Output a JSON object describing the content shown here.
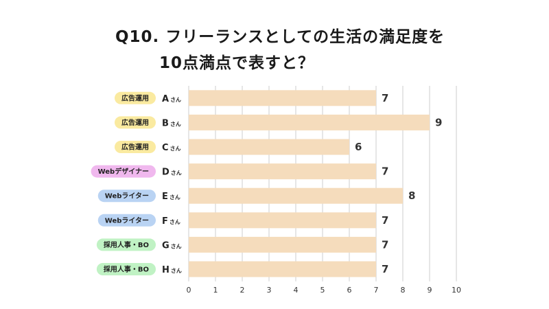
{
  "title": {
    "line1": "Q10. フリーランスとしての生活の満足度を",
    "line2": "10点満点で表すと？"
  },
  "colors": {
    "bar": "#f5dcbc",
    "grid": "#cccccc",
    "badge_ad": "#faeaa0",
    "badge_web_designer": "#f0b8ee",
    "badge_web_writer": "#b9d3f3",
    "badge_hr": "#c0f2c4"
  },
  "chart_data": {
    "type": "bar",
    "orientation": "horizontal",
    "categories": [
      "Aさん",
      "Bさん",
      "Cさん",
      "Dさん",
      "Eさん",
      "Fさん",
      "Gさん",
      "Hさん"
    ],
    "category_initials": [
      "A",
      "B",
      "C",
      "D",
      "E",
      "F",
      "G",
      "H"
    ],
    "category_suffix": "さん",
    "roles": [
      "広告運用",
      "広告運用",
      "広告運用",
      "Webデザイナー",
      "Webライター",
      "Webライター",
      "採用人事・BO",
      "採用人事・BO"
    ],
    "role_colors": [
      "badge_ad",
      "badge_ad",
      "badge_ad",
      "badge_web_designer",
      "badge_web_writer",
      "badge_web_writer",
      "badge_hr",
      "badge_hr"
    ],
    "values": [
      7,
      9,
      6,
      7,
      8,
      7,
      7,
      7
    ],
    "xlim": [
      0,
      10
    ],
    "xticks": [
      0,
      1,
      2,
      3,
      4,
      5,
      6,
      7,
      8,
      9,
      10
    ],
    "grid": true,
    "data_labels": true
  }
}
